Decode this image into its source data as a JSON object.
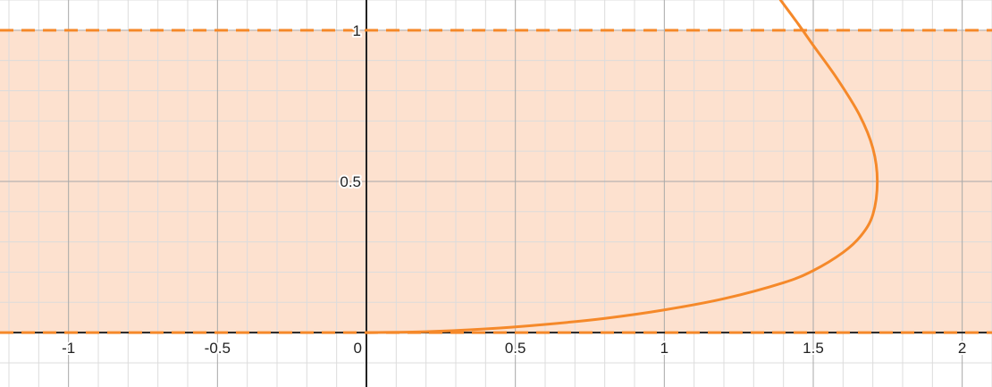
{
  "chart_data": {
    "type": "line",
    "title": "",
    "xlabel": "",
    "ylabel": "",
    "xlim": [
      -1.23,
      2.1
    ],
    "ylim": [
      -0.18,
      1.1
    ],
    "grid": true,
    "x_ticks": [
      {
        "value": -1,
        "label": "-1"
      },
      {
        "value": -0.5,
        "label": "-0.5"
      },
      {
        "value": 0,
        "label": "0"
      },
      {
        "value": 0.5,
        "label": "0.5"
      },
      {
        "value": 1,
        "label": "1"
      },
      {
        "value": 1.5,
        "label": "1.5"
      },
      {
        "value": 2,
        "label": "2"
      }
    ],
    "y_ticks": [
      {
        "value": 0.5,
        "label": "0.5"
      },
      {
        "value": 1,
        "label": "1"
      }
    ],
    "shaded_region": {
      "y_from": 0,
      "y_to": 1,
      "boundary_style": "dashed"
    },
    "colors": {
      "curve": "#f5892a",
      "fill": "#fde1cf",
      "boundary": "#f5892a",
      "axis": "#222222",
      "major_grid": "#a8a8a8",
      "minor_grid": "#dcdcdc"
    },
    "series": [
      {
        "points": [
          [
            0.0,
            0.0
          ],
          [
            0.2,
            0.003
          ],
          [
            0.4,
            0.012
          ],
          [
            0.6,
            0.027
          ],
          [
            0.8,
            0.047
          ],
          [
            1.0,
            0.075
          ],
          [
            1.2,
            0.112
          ],
          [
            1.4,
            0.165
          ],
          [
            1.5,
            0.205
          ],
          [
            1.6,
            0.265
          ],
          [
            1.66,
            0.32
          ],
          [
            1.7,
            0.39
          ],
          [
            1.715,
            0.5
          ],
          [
            1.7,
            0.61
          ],
          [
            1.655,
            0.72
          ],
          [
            1.58,
            0.84
          ],
          [
            1.5,
            0.95
          ],
          [
            1.45,
            1.02
          ],
          [
            1.39,
            1.1
          ]
        ]
      }
    ]
  }
}
